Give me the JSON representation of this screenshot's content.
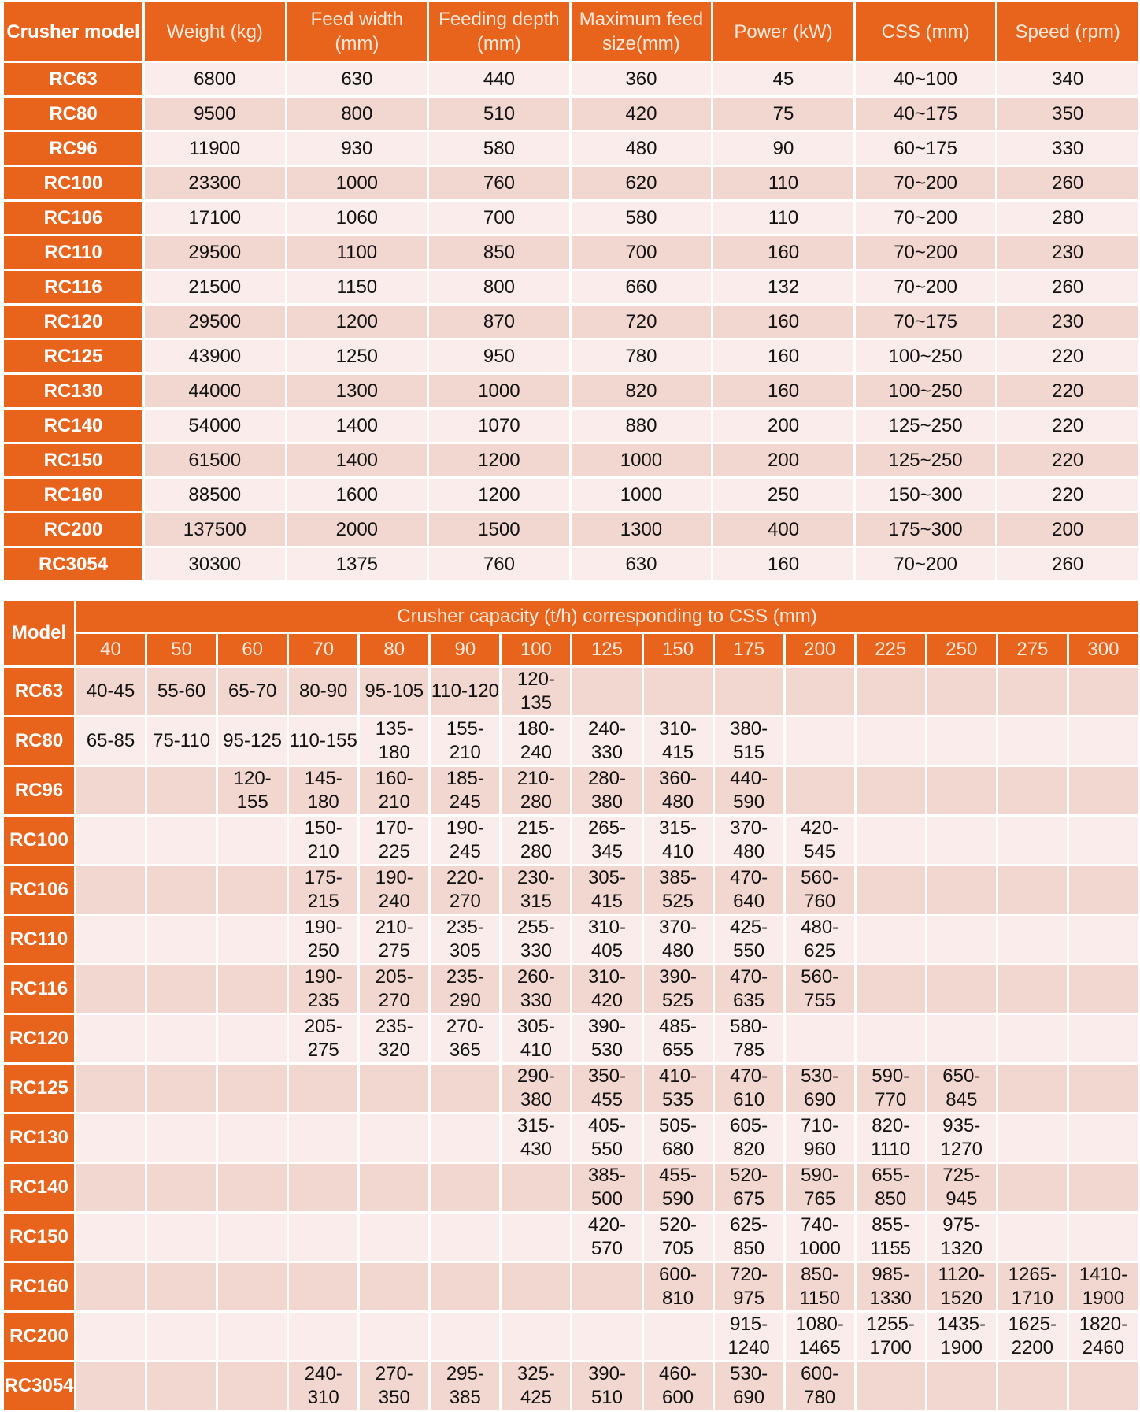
{
  "colors": {
    "header": "#e8641c",
    "row_light": "#f9ecea",
    "row_dark": "#f2d6d0"
  },
  "specs": {
    "headers": [
      "Crusher model",
      "Weight (kg)",
      "Feed width (mm)",
      "Feeding depth (mm)",
      "Maximum feed size(mm)",
      "Power (kW)",
      "CSS (mm)",
      "Speed (rpm)"
    ],
    "rows": [
      [
        "RC63",
        "6800",
        "630",
        "440",
        "360",
        "45",
        "40~100",
        "340"
      ],
      [
        "RC80",
        "9500",
        "800",
        "510",
        "420",
        "75",
        "40~175",
        "350"
      ],
      [
        "RC96",
        "11900",
        "930",
        "580",
        "480",
        "90",
        "60~175",
        "330"
      ],
      [
        "RC100",
        "23300",
        "1000",
        "760",
        "620",
        "110",
        "70~200",
        "260"
      ],
      [
        "RC106",
        "17100",
        "1060",
        "700",
        "580",
        "110",
        "70~200",
        "280"
      ],
      [
        "RC110",
        "29500",
        "1100",
        "850",
        "700",
        "160",
        "70~200",
        "230"
      ],
      [
        "RC116",
        "21500",
        "1150",
        "800",
        "660",
        "132",
        "70~200",
        "260"
      ],
      [
        "RC120",
        "29500",
        "1200",
        "870",
        "720",
        "160",
        "70~175",
        "230"
      ],
      [
        "RC125",
        "43900",
        "1250",
        "950",
        "780",
        "160",
        "100~250",
        "220"
      ],
      [
        "RC130",
        "44000",
        "1300",
        "1000",
        "820",
        "160",
        "100~250",
        "220"
      ],
      [
        "RC140",
        "54000",
        "1400",
        "1070",
        "880",
        "200",
        "125~250",
        "220"
      ],
      [
        "RC150",
        "61500",
        "1400",
        "1200",
        "1000",
        "200",
        "125~250",
        "220"
      ],
      [
        "RC160",
        "88500",
        "1600",
        "1200",
        "1000",
        "250",
        "150~300",
        "220"
      ],
      [
        "RC200",
        "137500",
        "2000",
        "1500",
        "1300",
        "400",
        "175~300",
        "200"
      ],
      [
        "RC3054",
        "30300",
        "1375",
        "760",
        "630",
        "160",
        "70~200",
        "260"
      ]
    ]
  },
  "capacity": {
    "model_header": "Model",
    "title": "Crusher capacity (t/h) corresponding to CSS (mm)",
    "css": [
      "40",
      "50",
      "60",
      "70",
      "80",
      "90",
      "100",
      "125",
      "150",
      "175",
      "200",
      "225",
      "250",
      "275",
      "300"
    ],
    "rows": [
      {
        "model": "RC63",
        "values": [
          "40-45",
          "55-60",
          "65-70",
          "80-90",
          "95-105",
          "110-120",
          "120-135",
          "",
          "",
          "",
          "",
          "",
          "",
          "",
          ""
        ]
      },
      {
        "model": "RC80",
        "values": [
          "65-85",
          "75-110",
          "95-125",
          "110-155",
          "135-180",
          "155-210",
          "180-240",
          "240-330",
          "310-415",
          "380-515",
          "",
          "",
          "",
          "",
          ""
        ]
      },
      {
        "model": "RC96",
        "values": [
          "",
          "",
          "120-155",
          "145-180",
          "160-210",
          "185-245",
          "210-280",
          "280-380",
          "360-480",
          "440-590",
          "",
          "",
          "",
          "",
          ""
        ]
      },
      {
        "model": "RC100",
        "values": [
          "",
          "",
          "",
          "150-210",
          "170-225",
          "190-245",
          "215-280",
          "265-345",
          "315-410",
          "370-480",
          "420-545",
          "",
          "",
          "",
          ""
        ]
      },
      {
        "model": "RC106",
        "values": [
          "",
          "",
          "",
          "175-215",
          "190-240",
          "220-270",
          "230-315",
          "305-415",
          "385-525",
          "470-640",
          "560-760",
          "",
          "",
          "",
          ""
        ]
      },
      {
        "model": "RC110",
        "values": [
          "",
          "",
          "",
          "190-250",
          "210-275",
          "235-305",
          "255-330",
          "310-405",
          "370-480",
          "425-550",
          "480-625",
          "",
          "",
          "",
          ""
        ]
      },
      {
        "model": "RC116",
        "values": [
          "",
          "",
          "",
          "190-235",
          "205-270",
          "235-290",
          "260-330",
          "310-420",
          "390-525",
          "470-635",
          "560-755",
          "",
          "",
          "",
          ""
        ]
      },
      {
        "model": "RC120",
        "values": [
          "",
          "",
          "",
          "205-275",
          "235-320",
          "270-365",
          "305-410",
          "390-530",
          "485-655",
          "580-785",
          "",
          "",
          "",
          "",
          ""
        ]
      },
      {
        "model": "RC125",
        "values": [
          "",
          "",
          "",
          "",
          "",
          "",
          "290-380",
          "350-455",
          "410-535",
          "470-610",
          "530-690",
          "590-770",
          "650-845",
          "",
          ""
        ]
      },
      {
        "model": "RC130",
        "values": [
          "",
          "",
          "",
          "",
          "",
          "",
          "315-430",
          "405-550",
          "505-680",
          "605-820",
          "710-960",
          "820-1110",
          "935-1270",
          "",
          ""
        ]
      },
      {
        "model": "RC140",
        "values": [
          "",
          "",
          "",
          "",
          "",
          "",
          "",
          "385-500",
          "455-590",
          "520-675",
          "590-765",
          "655-850",
          "725-945",
          "",
          ""
        ]
      },
      {
        "model": "RC150",
        "values": [
          "",
          "",
          "",
          "",
          "",
          "",
          "",
          "420-570",
          "520-705",
          "625-850",
          "740-1000",
          "855-1155",
          "975-1320",
          "",
          ""
        ]
      },
      {
        "model": "RC160",
        "values": [
          "",
          "",
          "",
          "",
          "",
          "",
          "",
          "",
          "600-810",
          "720-975",
          "850-1150",
          "985-1330",
          "1120-1520",
          "1265-1710",
          "1410-1900"
        ]
      },
      {
        "model": "RC200",
        "values": [
          "",
          "",
          "",
          "",
          "",
          "",
          "",
          "",
          "",
          "915-1240",
          "1080-1465",
          "1255-1700",
          "1435-1900",
          "1625-2200",
          "1820-2460"
        ]
      },
      {
        "model": "RC3054",
        "values": [
          "",
          "",
          "",
          "240-310",
          "270-350",
          "295-385",
          "325-425",
          "390-510",
          "460-600",
          "530-690",
          "600-780",
          "",
          "",
          "",
          ""
        ]
      }
    ]
  }
}
